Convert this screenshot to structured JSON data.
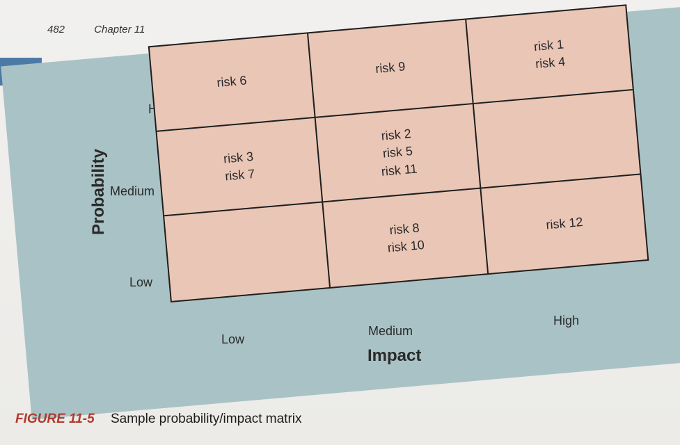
{
  "header": {
    "page_number": "482",
    "chapter": "Chapter 11"
  },
  "matrix": {
    "y_axis_title": "Probability",
    "x_axis_title": "Impact",
    "y_levels": [
      "High",
      "Medium",
      "Low"
    ],
    "x_levels": [
      "Low",
      "Medium",
      "High"
    ],
    "cells": [
      [
        "risk 6"
      ],
      [
        "risk 9"
      ],
      [
        "risk 1",
        "risk 4"
      ],
      [
        "risk 3",
        "risk 7"
      ],
      [
        "risk 2",
        "risk 5",
        "risk 11"
      ],
      [],
      [],
      [
        "risk 8",
        "risk 10"
      ],
      [
        "risk 12"
      ]
    ]
  },
  "caption": {
    "figure_label": "FIGURE 11-5",
    "text": "Sample probability/impact matrix"
  }
}
